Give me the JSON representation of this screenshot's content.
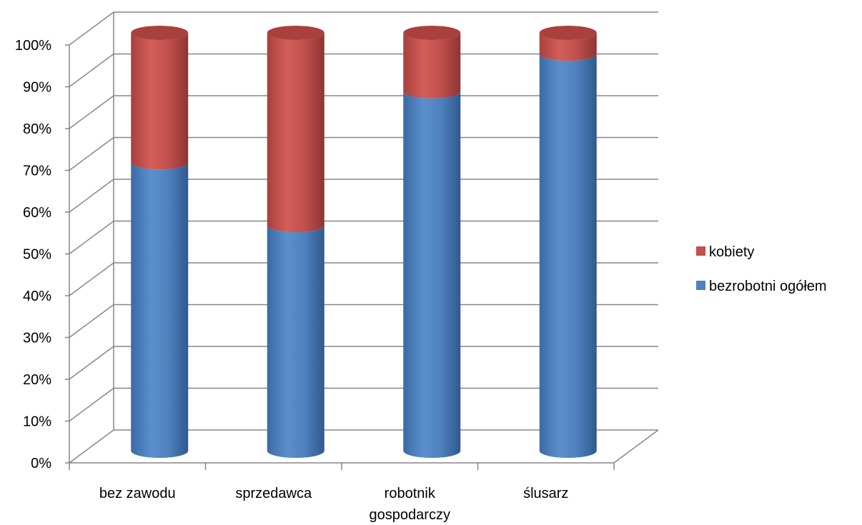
{
  "chart_data": {
    "type": "bar",
    "stacked": true,
    "percent_stacked": true,
    "style": "3d-cylinder",
    "categories": [
      "bez zawodu",
      "sprzedawca",
      "robotnik gospodarczy",
      "ślusarz"
    ],
    "category_lines": [
      [
        "bez zawodu"
      ],
      [
        "sprzedawca"
      ],
      [
        "robotnik",
        "gospodarczy"
      ],
      [
        "ślusarz"
      ]
    ],
    "series": [
      {
        "name": "bezrobotni ogółem",
        "color": "#4F81BD",
        "values": [
          69,
          54,
          86,
          95
        ]
      },
      {
        "name": "kobiety",
        "color": "#C0504D",
        "values": [
          31,
          46,
          14,
          5
        ]
      }
    ],
    "y_ticks": [
      "0%",
      "10%",
      "20%",
      "30%",
      "40%",
      "50%",
      "60%",
      "70%",
      "80%",
      "90%",
      "100%"
    ],
    "ylim": [
      0,
      100
    ],
    "grid": true,
    "legend_position": "right",
    "legend_order": [
      "kobiety",
      "bezrobotni ogółem"
    ],
    "title": "",
    "xlabel": "",
    "ylabel": ""
  }
}
